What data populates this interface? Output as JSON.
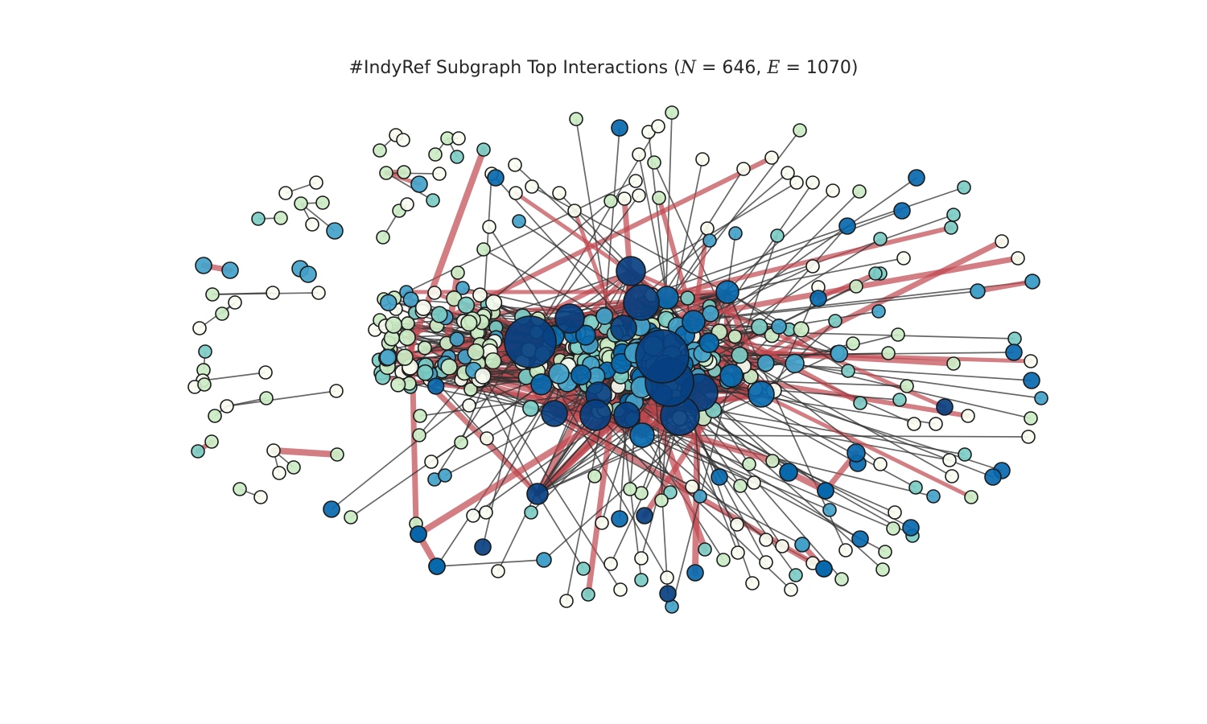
{
  "figure": {
    "title_prefix": "#IndyRef Subgraph Top Interactions (",
    "n_symbol": "N",
    "n_value": "646",
    "e_symbol": "E",
    "e_value": "1070",
    "title_suffix": ")"
  },
  "graph": {
    "node_count": 646,
    "edge_count": 1070,
    "node_palette": [
      "#f7fcf0",
      "#ccebc5",
      "#7bccc4",
      "#43a2ca",
      "#0868ac",
      "#084081"
    ],
    "edge_color_normal": "#333333",
    "edge_color_strong": "#c0474f"
  }
}
